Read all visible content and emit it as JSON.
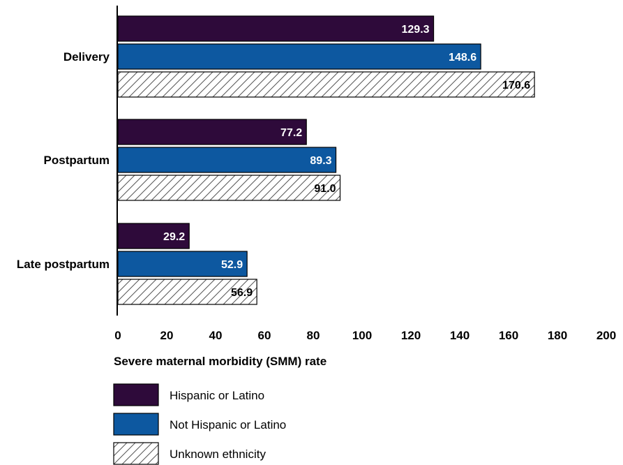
{
  "chart_data": {
    "type": "bar",
    "orientation": "horizontal",
    "categories": [
      "Delivery",
      "Postpartum",
      "Late postpartum"
    ],
    "series": [
      {
        "name": "Hispanic or Latino",
        "values": [
          129.3,
          77.2,
          29.2
        ],
        "color": "#2e0a3a",
        "pattern": "solid",
        "label_color": "#ffffff"
      },
      {
        "name": "Not Hispanic or Latino",
        "values": [
          148.6,
          89.3,
          52.9
        ],
        "color": "#0d58a0",
        "pattern": "solid",
        "label_color": "#ffffff"
      },
      {
        "name": "Unknown ethnicity",
        "values": [
          170.6,
          91.0,
          56.9
        ],
        "color": "#ffffff",
        "pattern": "diagonal-hatch",
        "label_color": "#000000"
      }
    ],
    "value_labels": [
      [
        "129.3",
        "77.2",
        "29.2"
      ],
      [
        "148.6",
        "89.3",
        "52.9"
      ],
      [
        "170.6",
        "91.0",
        "56.9"
      ]
    ],
    "xlabel": "Severe maternal morbidity (SMM) rate",
    "ylabel": "",
    "xlim": [
      0,
      200
    ],
    "xticks": [
      0,
      20,
      40,
      60,
      80,
      100,
      120,
      140,
      160,
      180,
      200
    ],
    "grid": false,
    "legend_position": "bottom-left"
  }
}
